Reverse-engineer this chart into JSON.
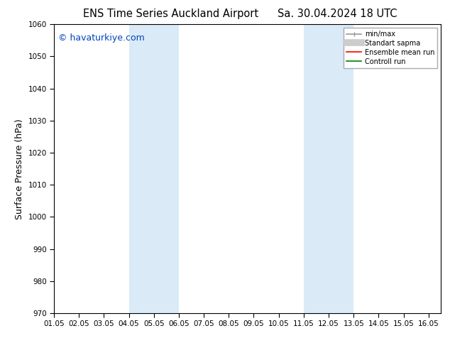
{
  "title_left": "ENS Time Series Auckland Airport",
  "title_right": "Sa. 30.04.2024 18 UTC",
  "ylabel": "Surface Pressure (hPa)",
  "xlabel": "",
  "xlim": [
    1.05,
    16.55
  ],
  "ylim": [
    970,
    1060
  ],
  "yticks": [
    970,
    980,
    990,
    1000,
    1010,
    1020,
    1030,
    1040,
    1050,
    1060
  ],
  "xtick_labels": [
    "01.05",
    "02.05",
    "03.05",
    "04.05",
    "05.05",
    "06.05",
    "07.05",
    "08.05",
    "09.05",
    "10.05",
    "11.05",
    "12.05",
    "13.05",
    "14.05",
    "15.05",
    "16.05"
  ],
  "xtick_positions": [
    1.05,
    2.05,
    3.05,
    4.05,
    5.05,
    6.05,
    7.05,
    8.05,
    9.05,
    10.05,
    11.05,
    12.05,
    13.05,
    14.05,
    15.05,
    16.05
  ],
  "shaded_bands": [
    {
      "xmin": 4.05,
      "xmax": 6.05
    },
    {
      "xmin": 11.05,
      "xmax": 13.05
    }
  ],
  "band_color": "#daeaf7",
  "watermark": "© havaturkiye.com",
  "watermark_color": "#0044bb",
  "legend_items": [
    {
      "label": "min/max",
      "color": "#999999",
      "lw": 1.2
    },
    {
      "label": "Standart sapma",
      "color": "#cccccc",
      "lw": 7
    },
    {
      "label": "Ensemble mean run",
      "color": "red",
      "lw": 1.2
    },
    {
      "label": "Controll run",
      "color": "green",
      "lw": 1.2
    }
  ],
  "bg_color": "#ffffff",
  "plot_bg_color": "#ffffff",
  "tick_fontsize": 7.5,
  "ylabel_fontsize": 9,
  "title_fontsize": 10.5,
  "watermark_fontsize": 9,
  "legend_fontsize": 7
}
